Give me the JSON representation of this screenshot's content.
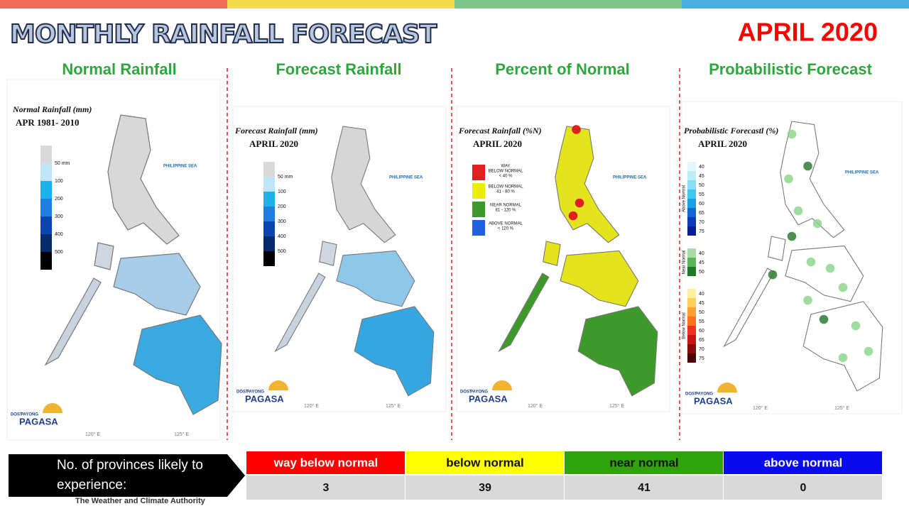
{
  "header": {
    "title": "MONTHLY RAINFALL FORECAST",
    "period": "APRIL 2020"
  },
  "panels": [
    {
      "title": "Normal Rainfall",
      "map_title": "Normal Rainfall (mm)",
      "map_subtitle": "APR 1981- 2010",
      "legend": [
        "50 mm",
        "100",
        "200",
        "300",
        "400",
        "500"
      ]
    },
    {
      "title": "Forecast Rainfall",
      "map_title": "Forecast Rainfall (mm)",
      "map_subtitle": "APRIL 2020",
      "legend": [
        "50 mm",
        "100",
        "200",
        "300",
        "400",
        "500"
      ]
    },
    {
      "title": "Percent of Normal",
      "map_title": "Forecast Rainfall (%N)",
      "map_subtitle": "APRIL 2020",
      "legend": [
        [
          "WAY",
          "BELOW NORMAL",
          "< 40 %"
        ],
        [
          "BELOW NORMAL",
          "41 - 80 %"
        ],
        [
          "NEAR NORMAL",
          "81 - 120 %"
        ],
        [
          "ABOVE NORMAL",
          "< 120 %"
        ]
      ]
    },
    {
      "title": "Probabilistic Forecast",
      "map_title": "Probabilistic Forecastl (%)",
      "map_subtitle": "APRIL 2020",
      "legend_groups": [
        {
          "name": "Above Normal",
          "ticks": [
            "40",
            "45",
            "50",
            "55",
            "60",
            "65",
            "70",
            "75"
          ]
        },
        {
          "name": "Near Normal",
          "ticks": [
            "40",
            "45",
            "50"
          ]
        },
        {
          "name": "Below Normal",
          "ticks": [
            "40",
            "45",
            "50",
            "55",
            "60",
            "65",
            "70",
            "75"
          ]
        }
      ]
    }
  ],
  "sea_label": "PHILIPPINE SEA",
  "coords": [
    "120° E",
    "125° E"
  ],
  "logo": {
    "agency": "DOST",
    "program": "PAYONG",
    "name": "PAGASA",
    "tagline": "The Weather and Climate Authority"
  },
  "summary": {
    "label": "No. of provinces likely to experience:",
    "columns": [
      {
        "name": "way below normal",
        "count": 3
      },
      {
        "name": "below normal",
        "count": 39
      },
      {
        "name": "near normal",
        "count": 41
      },
      {
        "name": "above normal",
        "count": 0
      }
    ]
  }
}
